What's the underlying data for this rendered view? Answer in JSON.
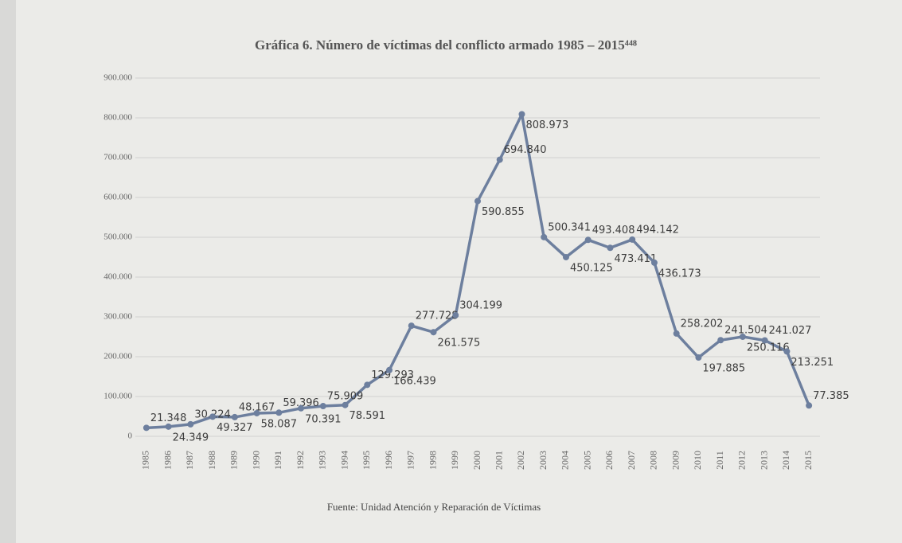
{
  "chart_data": {
    "type": "line",
    "title": "Gráfica 6. Número de víctimas del conflicto armado 1985 – 2015⁴⁴⁸",
    "source": "Fuente: Unidad Atención y Reparación de Víctimas",
    "categories": [
      "1985",
      "1986",
      "1987",
      "1988",
      "1989",
      "1990",
      "1991",
      "1992",
      "1993",
      "1994",
      "1995",
      "1996",
      "1997",
      "1998",
      "1999",
      "2000",
      "2001",
      "2002",
      "2003",
      "2004",
      "2005",
      "2006",
      "2007",
      "2008",
      "2009",
      "2010",
      "2011",
      "2012",
      "2013",
      "2014",
      "2015"
    ],
    "series": [
      {
        "color": "#6d7f9e",
        "values": [
          21348,
          24349,
          30224,
          49327,
          48167,
          58087,
          59396,
          70391,
          75909,
          78591,
          129293,
          166439,
          277728,
          261575,
          304199,
          590855,
          694840,
          808973,
          500341,
          450125,
          493408,
          473411,
          494142,
          436173,
          258202,
          197885,
          241504,
          250116,
          241027,
          213251,
          77385
        ],
        "value_labels": [
          "21.348",
          "24.349",
          "30.224",
          "49.327",
          "48.167",
          "58.087",
          "59.396",
          "70.391",
          "75.909",
          "78.591",
          "129.293",
          "166.439",
          "277.728",
          "261.575",
          "304.199",
          "590.855",
          "694.840",
          "808.973",
          "500.341",
          "450.125",
          "493.408",
          "473.411",
          "494.142",
          "436.173",
          "258.202",
          "197.885",
          "241.504",
          "250.116",
          "241.027",
          "213.251",
          "77.385"
        ]
      }
    ],
    "ylim": [
      0,
      900000
    ],
    "yticks": [
      0,
      {
        "value": 100000,
        "label": "100.000"
      },
      {
        "value": 200000,
        "label": "200.000"
      },
      {
        "value": 300000,
        "label": "300.000"
      },
      {
        "value": 400000,
        "label": "400.000"
      },
      {
        "value": 500000,
        "label": "500.000"
      },
      {
        "value": 600000,
        "label": "600.000"
      },
      {
        "value": 700000,
        "label": "700.000"
      },
      {
        "value": 800000,
        "label": "800.000"
      },
      {
        "value": 900000,
        "label": "900.000"
      }
    ],
    "grid": true
  }
}
